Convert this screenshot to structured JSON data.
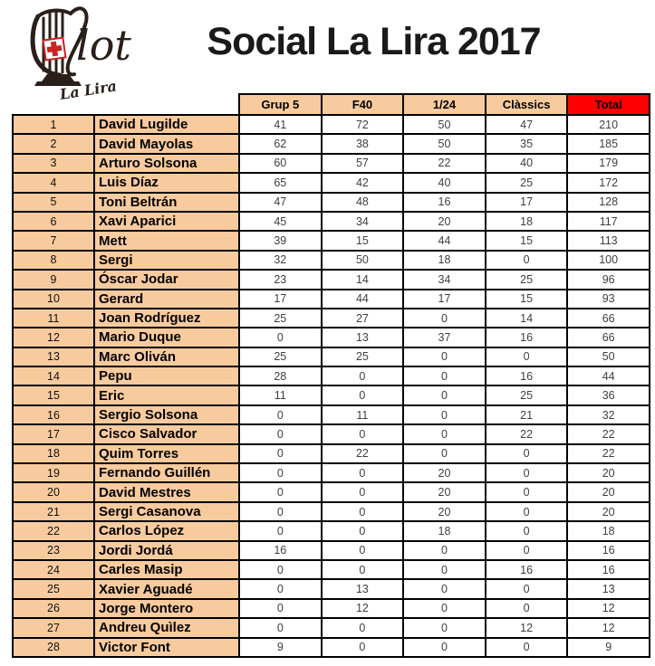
{
  "title": "Social La Lira 2017",
  "logo": {
    "script_text": "lot",
    "subtitle": "La Lira"
  },
  "colors": {
    "cell_bg": "#F8CB9E",
    "total_header_bg": "#FF0000",
    "border": "#000000",
    "logo_ink": "#2b1f1a",
    "cross_red": "#cc2222"
  },
  "table": {
    "columns": [
      "Grup 5",
      "F40",
      "1/24",
      "Clàssics",
      "Total"
    ],
    "rows": [
      {
        "rank": "1",
        "name": "David Lugilde",
        "values": [
          "41",
          "72",
          "50",
          "47",
          "210"
        ]
      },
      {
        "rank": "2",
        "name": "David Mayolas",
        "values": [
          "62",
          "38",
          "50",
          "35",
          "185"
        ]
      },
      {
        "rank": "3",
        "name": "Arturo Solsona",
        "values": [
          "60",
          "57",
          "22",
          "40",
          "179"
        ]
      },
      {
        "rank": "4",
        "name": "Luis Díaz",
        "values": [
          "65",
          "42",
          "40",
          "25",
          "172"
        ]
      },
      {
        "rank": "5",
        "name": "Toni Beltrán",
        "values": [
          "47",
          "48",
          "16",
          "17",
          "128"
        ]
      },
      {
        "rank": "6",
        "name": "Xavi Aparici",
        "values": [
          "45",
          "34",
          "20",
          "18",
          "117"
        ]
      },
      {
        "rank": "7",
        "name": "Mett",
        "values": [
          "39",
          "15",
          "44",
          "15",
          "113"
        ]
      },
      {
        "rank": "8",
        "name": "Sergi",
        "values": [
          "32",
          "50",
          "18",
          "0",
          "100"
        ]
      },
      {
        "rank": "9",
        "name": "Óscar Jodar",
        "values": [
          "23",
          "14",
          "34",
          "25",
          "96"
        ]
      },
      {
        "rank": "10",
        "name": "Gerard",
        "values": [
          "17",
          "44",
          "17",
          "15",
          "93"
        ]
      },
      {
        "rank": "11",
        "name": "Joan Rodríguez",
        "values": [
          "25",
          "27",
          "0",
          "14",
          "66"
        ]
      },
      {
        "rank": "12",
        "name": "Mario Duque",
        "values": [
          "0",
          "13",
          "37",
          "16",
          "66"
        ]
      },
      {
        "rank": "13",
        "name": "Marc Oliván",
        "values": [
          "25",
          "25",
          "0",
          "0",
          "50"
        ]
      },
      {
        "rank": "14",
        "name": "Pepu",
        "values": [
          "28",
          "0",
          "0",
          "16",
          "44"
        ]
      },
      {
        "rank": "15",
        "name": "Eric",
        "values": [
          "11",
          "0",
          "0",
          "25",
          "36"
        ]
      },
      {
        "rank": "16",
        "name": "Sergio Solsona",
        "values": [
          "0",
          "11",
          "0",
          "21",
          "32"
        ]
      },
      {
        "rank": "17",
        "name": "Cisco Salvador",
        "values": [
          "0",
          "0",
          "0",
          "22",
          "22"
        ]
      },
      {
        "rank": "18",
        "name": "Quim Torres",
        "values": [
          "0",
          "22",
          "0",
          "0",
          "22"
        ]
      },
      {
        "rank": "19",
        "name": "Fernando Guillén",
        "values": [
          "0",
          "0",
          "20",
          "0",
          "20"
        ]
      },
      {
        "rank": "20",
        "name": "David Mestres",
        "values": [
          "0",
          "0",
          "20",
          "0",
          "20"
        ]
      },
      {
        "rank": "21",
        "name": "Sergi Casanova",
        "values": [
          "0",
          "0",
          "20",
          "0",
          "20"
        ]
      },
      {
        "rank": "22",
        "name": "Carlos López",
        "values": [
          "0",
          "0",
          "18",
          "0",
          "18"
        ]
      },
      {
        "rank": "23",
        "name": "Jordi Jordá",
        "values": [
          "16",
          "0",
          "0",
          "0",
          "16"
        ]
      },
      {
        "rank": "24",
        "name": "Carles Masip",
        "values": [
          "0",
          "0",
          "0",
          "16",
          "16"
        ]
      },
      {
        "rank": "25",
        "name": "Xavier Aguadé",
        "values": [
          "0",
          "13",
          "0",
          "0",
          "13"
        ]
      },
      {
        "rank": "26",
        "name": "Jorge Montero",
        "values": [
          "0",
          "12",
          "0",
          "0",
          "12"
        ]
      },
      {
        "rank": "27",
        "name": "Andreu Quìlez",
        "values": [
          "0",
          "0",
          "0",
          "12",
          "12"
        ]
      },
      {
        "rank": "28",
        "name": "Victor Font",
        "values": [
          "9",
          "0",
          "0",
          "0",
          "9"
        ]
      }
    ]
  }
}
